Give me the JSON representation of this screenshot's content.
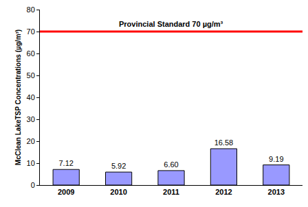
{
  "chart_data": {
    "type": "bar",
    "y_label": "McClean LakeTSP Concentrations (µg/m³)",
    "categories": [
      "2009",
      "2010",
      "2011",
      "2012",
      "2013"
    ],
    "values": [
      7.12,
      5.92,
      6.6,
      16.58,
      9.19
    ],
    "value_labels": [
      "7.12",
      "5.92",
      "6.60",
      "16.58",
      "9.19"
    ],
    "data_labels": true,
    "color": "#9999ff",
    "ylim": [
      0,
      80
    ],
    "yticks": [
      0,
      10,
      20,
      30,
      40,
      50,
      60,
      70,
      80
    ],
    "grid": false,
    "reference_line": {
      "value": 70,
      "label": "Provincial Standard 70 µg/m³",
      "color": "#ff0000"
    }
  }
}
